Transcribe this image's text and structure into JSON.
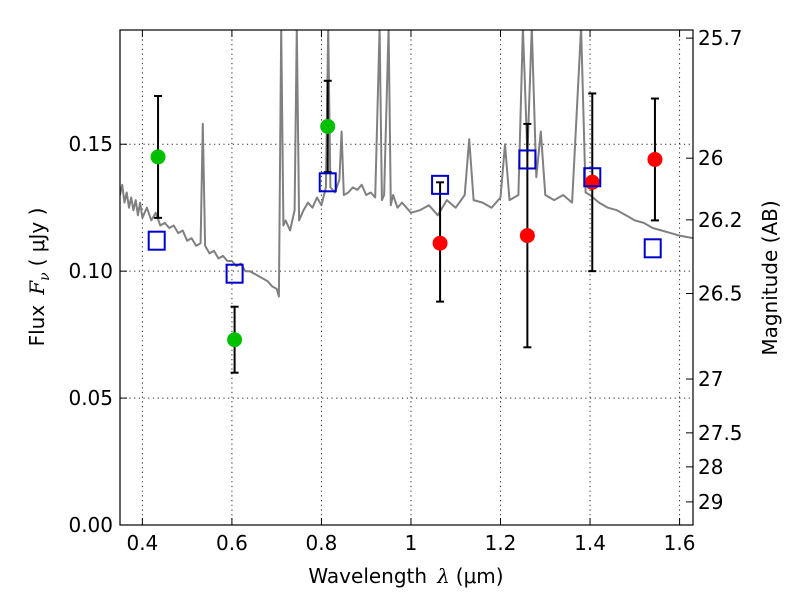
{
  "chart_data": {
    "type": "scatter",
    "title": "",
    "xlabel": "Wavelength",
    "xlabel_symbol": "λ",
    "xlabel_unit": "(μm)",
    "ylabel": "Flux",
    "ylabel_symbol": "F",
    "ylabel_subscript": "ν",
    "ylabel_unit": "( μJy )",
    "y2label": "Magnitude (AB)",
    "xlim": [
      0.35,
      1.63
    ],
    "ylim": [
      0.0,
      0.195
    ],
    "grid": true,
    "x_ticks": [
      0.4,
      0.6,
      0.8,
      1.0,
      1.2,
      1.4,
      1.6
    ],
    "x_tick_labels": [
      "0.4",
      "0.6",
      "0.8",
      "1",
      "1.2",
      "1.4",
      "1.6"
    ],
    "y_ticks": [
      0.0,
      0.05,
      0.1,
      0.15
    ],
    "y_tick_labels": [
      "0.00",
      "0.05",
      "0.10",
      "0.15"
    ],
    "y2_ticks": [
      {
        "label": "25.7",
        "flux": 0.1918
      },
      {
        "label": "26",
        "flux": 0.1445
      },
      {
        "label": "26.2",
        "flux": 0.1202
      },
      {
        "label": "26.5",
        "flux": 0.0912
      },
      {
        "label": "27",
        "flux": 0.0575
      },
      {
        "label": "27.5",
        "flux": 0.0363
      },
      {
        "label": "28",
        "flux": 0.0229
      },
      {
        "label": "29",
        "flux": 0.0091
      }
    ],
    "series": [
      {
        "kind": "points",
        "marker": "circle",
        "color": "#00c000",
        "points": [
          {
            "x": 0.435,
            "y": 0.145,
            "err_lo": 0.121,
            "err_hi": 0.169
          },
          {
            "x": 0.606,
            "y": 0.073,
            "err_lo": 0.06,
            "err_hi": 0.086
          },
          {
            "x": 0.814,
            "y": 0.157,
            "err_lo": 0.139,
            "err_hi": 0.175
          }
        ]
      },
      {
        "kind": "points",
        "marker": "circle",
        "color": "#ff0000",
        "points": [
          {
            "x": 1.065,
            "y": 0.111,
            "err_lo": 0.088,
            "err_hi": 0.135
          },
          {
            "x": 1.26,
            "y": 0.114,
            "err_lo": 0.07,
            "err_hi": 0.158
          },
          {
            "x": 1.405,
            "y": 0.135,
            "err_lo": 0.1,
            "err_hi": 0.17
          },
          {
            "x": 1.545,
            "y": 0.144,
            "err_lo": 0.12,
            "err_hi": 0.168
          }
        ]
      },
      {
        "kind": "points",
        "marker": "square-open",
        "color": "#0000cc",
        "points": [
          {
            "x": 0.432,
            "y": 0.112
          },
          {
            "x": 0.606,
            "y": 0.099
          },
          {
            "x": 0.814,
            "y": 0.135
          },
          {
            "x": 1.065,
            "y": 0.134
          },
          {
            "x": 1.26,
            "y": 0.144
          },
          {
            "x": 1.405,
            "y": 0.137
          },
          {
            "x": 1.54,
            "y": 0.109
          }
        ]
      },
      {
        "kind": "line",
        "color": "#808080",
        "points": [
          [
            0.35,
            0.13
          ],
          [
            0.355,
            0.134
          ],
          [
            0.36,
            0.127
          ],
          [
            0.365,
            0.131
          ],
          [
            0.37,
            0.125
          ],
          [
            0.375,
            0.129
          ],
          [
            0.38,
            0.124
          ],
          [
            0.385,
            0.128
          ],
          [
            0.39,
            0.122
          ],
          [
            0.395,
            0.127
          ],
          [
            0.4,
            0.121
          ],
          [
            0.41,
            0.125
          ],
          [
            0.42,
            0.12
          ],
          [
            0.43,
            0.123
          ],
          [
            0.44,
            0.118
          ],
          [
            0.45,
            0.119
          ],
          [
            0.46,
            0.117
          ],
          [
            0.47,
            0.118
          ],
          [
            0.48,
            0.115
          ],
          [
            0.49,
            0.116
          ],
          [
            0.5,
            0.112
          ],
          [
            0.51,
            0.113
          ],
          [
            0.52,
            0.11
          ],
          [
            0.53,
            0.111
          ],
          [
            0.535,
            0.158
          ],
          [
            0.54,
            0.11
          ],
          [
            0.55,
            0.107
          ],
          [
            0.56,
            0.108
          ],
          [
            0.57,
            0.105
          ],
          [
            0.58,
            0.106
          ],
          [
            0.59,
            0.104
          ],
          [
            0.6,
            0.104
          ],
          [
            0.61,
            0.102
          ],
          [
            0.62,
            0.103
          ],
          [
            0.63,
            0.1
          ],
          [
            0.64,
            0.1
          ],
          [
            0.65,
            0.099
          ],
          [
            0.66,
            0.098
          ],
          [
            0.67,
            0.097
          ],
          [
            0.68,
            0.096
          ],
          [
            0.69,
            0.094
          ],
          [
            0.7,
            0.093
          ],
          [
            0.705,
            0.09
          ],
          [
            0.71,
            0.196
          ],
          [
            0.715,
            0.118
          ],
          [
            0.72,
            0.12
          ],
          [
            0.73,
            0.116
          ],
          [
            0.74,
            0.124
          ],
          [
            0.745,
            0.196
          ],
          [
            0.75,
            0.12
          ],
          [
            0.76,
            0.124
          ],
          [
            0.77,
            0.127
          ],
          [
            0.78,
            0.125
          ],
          [
            0.79,
            0.129
          ],
          [
            0.8,
            0.126
          ],
          [
            0.81,
            0.133
          ],
          [
            0.815,
            0.196
          ],
          [
            0.82,
            0.133
          ],
          [
            0.83,
            0.131
          ],
          [
            0.84,
            0.136
          ],
          [
            0.845,
            0.155
          ],
          [
            0.85,
            0.13
          ],
          [
            0.86,
            0.131
          ],
          [
            0.87,
            0.133
          ],
          [
            0.88,
            0.132
          ],
          [
            0.89,
            0.134
          ],
          [
            0.9,
            0.13
          ],
          [
            0.91,
            0.131
          ],
          [
            0.92,
            0.129
          ],
          [
            0.93,
            0.196
          ],
          [
            0.935,
            0.128
          ],
          [
            0.94,
            0.13
          ],
          [
            0.95,
            0.196
          ],
          [
            0.955,
            0.126
          ],
          [
            0.96,
            0.13
          ],
          [
            0.97,
            0.125
          ],
          [
            0.98,
            0.127
          ],
          [
            1.0,
            0.123
          ],
          [
            1.02,
            0.124
          ],
          [
            1.04,
            0.126
          ],
          [
            1.06,
            0.122
          ],
          [
            1.08,
            0.128
          ],
          [
            1.1,
            0.125
          ],
          [
            1.12,
            0.13
          ],
          [
            1.13,
            0.152
          ],
          [
            1.14,
            0.128
          ],
          [
            1.16,
            0.127
          ],
          [
            1.18,
            0.125
          ],
          [
            1.2,
            0.129
          ],
          [
            1.21,
            0.15
          ],
          [
            1.22,
            0.128
          ],
          [
            1.24,
            0.13
          ],
          [
            1.25,
            0.196
          ],
          [
            1.26,
            0.146
          ],
          [
            1.27,
            0.196
          ],
          [
            1.28,
            0.137
          ],
          [
            1.29,
            0.155
          ],
          [
            1.3,
            0.13
          ],
          [
            1.32,
            0.128
          ],
          [
            1.34,
            0.13
          ],
          [
            1.36,
            0.127
          ],
          [
            1.38,
            0.196
          ],
          [
            1.39,
            0.131
          ],
          [
            1.4,
            0.13
          ],
          [
            1.42,
            0.127
          ],
          [
            1.44,
            0.125
          ],
          [
            1.46,
            0.124
          ],
          [
            1.48,
            0.122
          ],
          [
            1.5,
            0.12
          ],
          [
            1.52,
            0.119
          ],
          [
            1.54,
            0.117
          ],
          [
            1.56,
            0.116
          ],
          [
            1.58,
            0.115
          ],
          [
            1.6,
            0.114
          ],
          [
            1.63,
            0.113
          ]
        ]
      }
    ]
  }
}
